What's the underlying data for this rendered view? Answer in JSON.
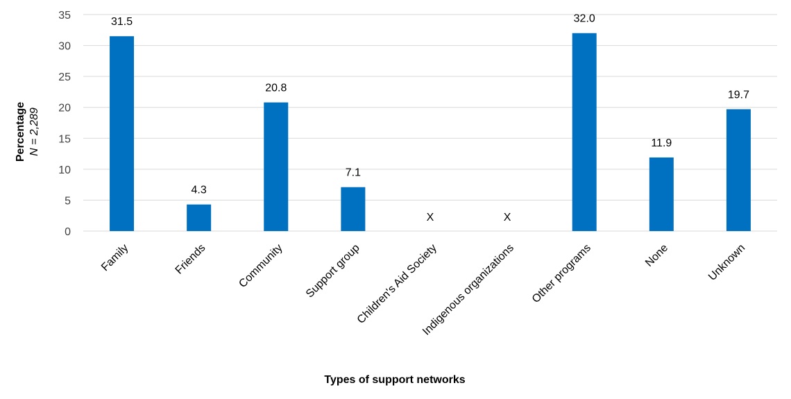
{
  "chart_data": {
    "type": "bar",
    "title": "",
    "xlabel": "Types of support networks",
    "ylabel": "Percentage",
    "ylabel_sub": "N = 2,289",
    "ylim": [
      0,
      35
    ],
    "yticks": [
      0,
      5,
      10,
      15,
      20,
      25,
      30,
      35
    ],
    "grid": true,
    "legend": "none",
    "bar_color": "#0070C0",
    "grid_color": "#D9D9D9",
    "categories": [
      "Family",
      "Friends",
      "Community",
      "Support group",
      "Children's Aid Society",
      "Indigenous organizations",
      "Other programs",
      "None",
      "Unknown"
    ],
    "values": [
      31.5,
      4.3,
      20.8,
      7.1,
      null,
      null,
      32.0,
      11.9,
      19.7
    ],
    "data_labels": [
      "31.5",
      "4.3",
      "20.8",
      "7.1",
      "X",
      "X",
      "32.0",
      "11.9",
      "19.7"
    ]
  }
}
